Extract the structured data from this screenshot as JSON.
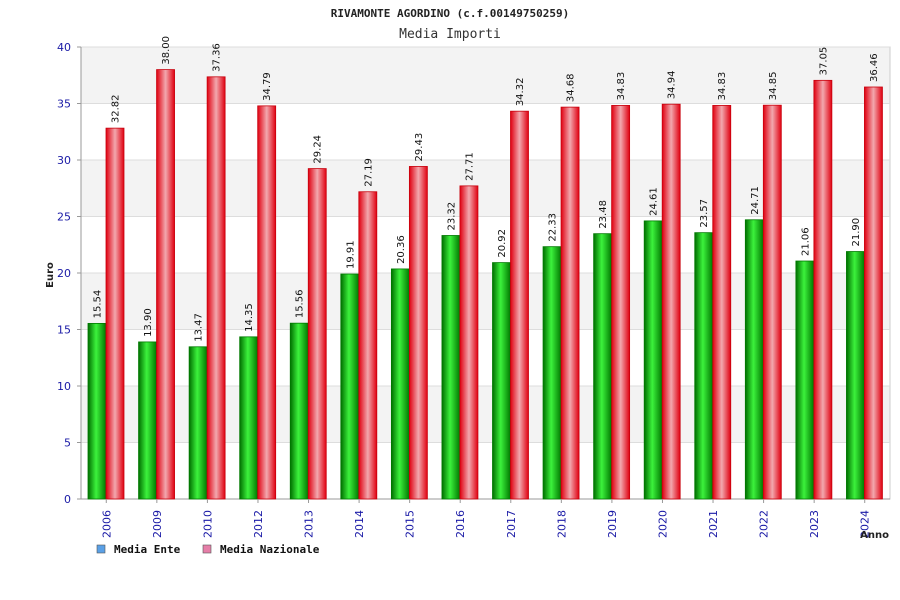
{
  "chart_data": {
    "type": "bar",
    "title": "RIVAMONTE AGORDINO (c.f.00149750259)",
    "subtitle": "Media Importi",
    "xlabel": "Anno",
    "ylabel": "Euro",
    "ylim": [
      0,
      40
    ],
    "yticks": [
      "0",
      "5",
      "10",
      "15",
      "20",
      "25",
      "30",
      "35",
      "40"
    ],
    "grid": true,
    "legend_position": "bottom-left",
    "categories": [
      "2006",
      "2009",
      "2010",
      "2012",
      "2013",
      "2014",
      "2015",
      "2016",
      "2017",
      "2018",
      "2019",
      "2020",
      "2021",
      "2022",
      "2023",
      "2024"
    ],
    "series": [
      {
        "name": "Media Ente",
        "color": "#00b400",
        "legend_color": "#5aa0e6",
        "values": [
          15.54,
          13.9,
          13.47,
          14.35,
          15.56,
          19.91,
          20.36,
          23.32,
          20.92,
          22.33,
          23.48,
          24.61,
          23.57,
          24.71,
          21.06,
          21.9
        ],
        "labels": [
          "15.54",
          "13.90",
          "13.47",
          "14.35",
          "15.56",
          "19.91",
          "20.36",
          "23.32",
          "20.92",
          "22.33",
          "23.48",
          "24.61",
          "23.57",
          "24.71",
          "21.06",
          "21.90"
        ]
      },
      {
        "name": "Media Nazionale",
        "color": "#e6121e",
        "legend_color": "#e67ea8",
        "values": [
          32.82,
          38.0,
          37.36,
          34.79,
          29.24,
          27.19,
          29.43,
          27.71,
          34.32,
          34.68,
          34.83,
          34.94,
          34.83,
          34.85,
          37.05,
          36.46
        ],
        "labels": [
          "32.82",
          "38.00",
          "37.36",
          "34.79",
          "29.24",
          "27.19",
          "29.43",
          "27.71",
          "34.32",
          "34.68",
          "34.83",
          "34.94",
          "34.83",
          "34.85",
          "37.05",
          "36.46"
        ]
      }
    ]
  }
}
